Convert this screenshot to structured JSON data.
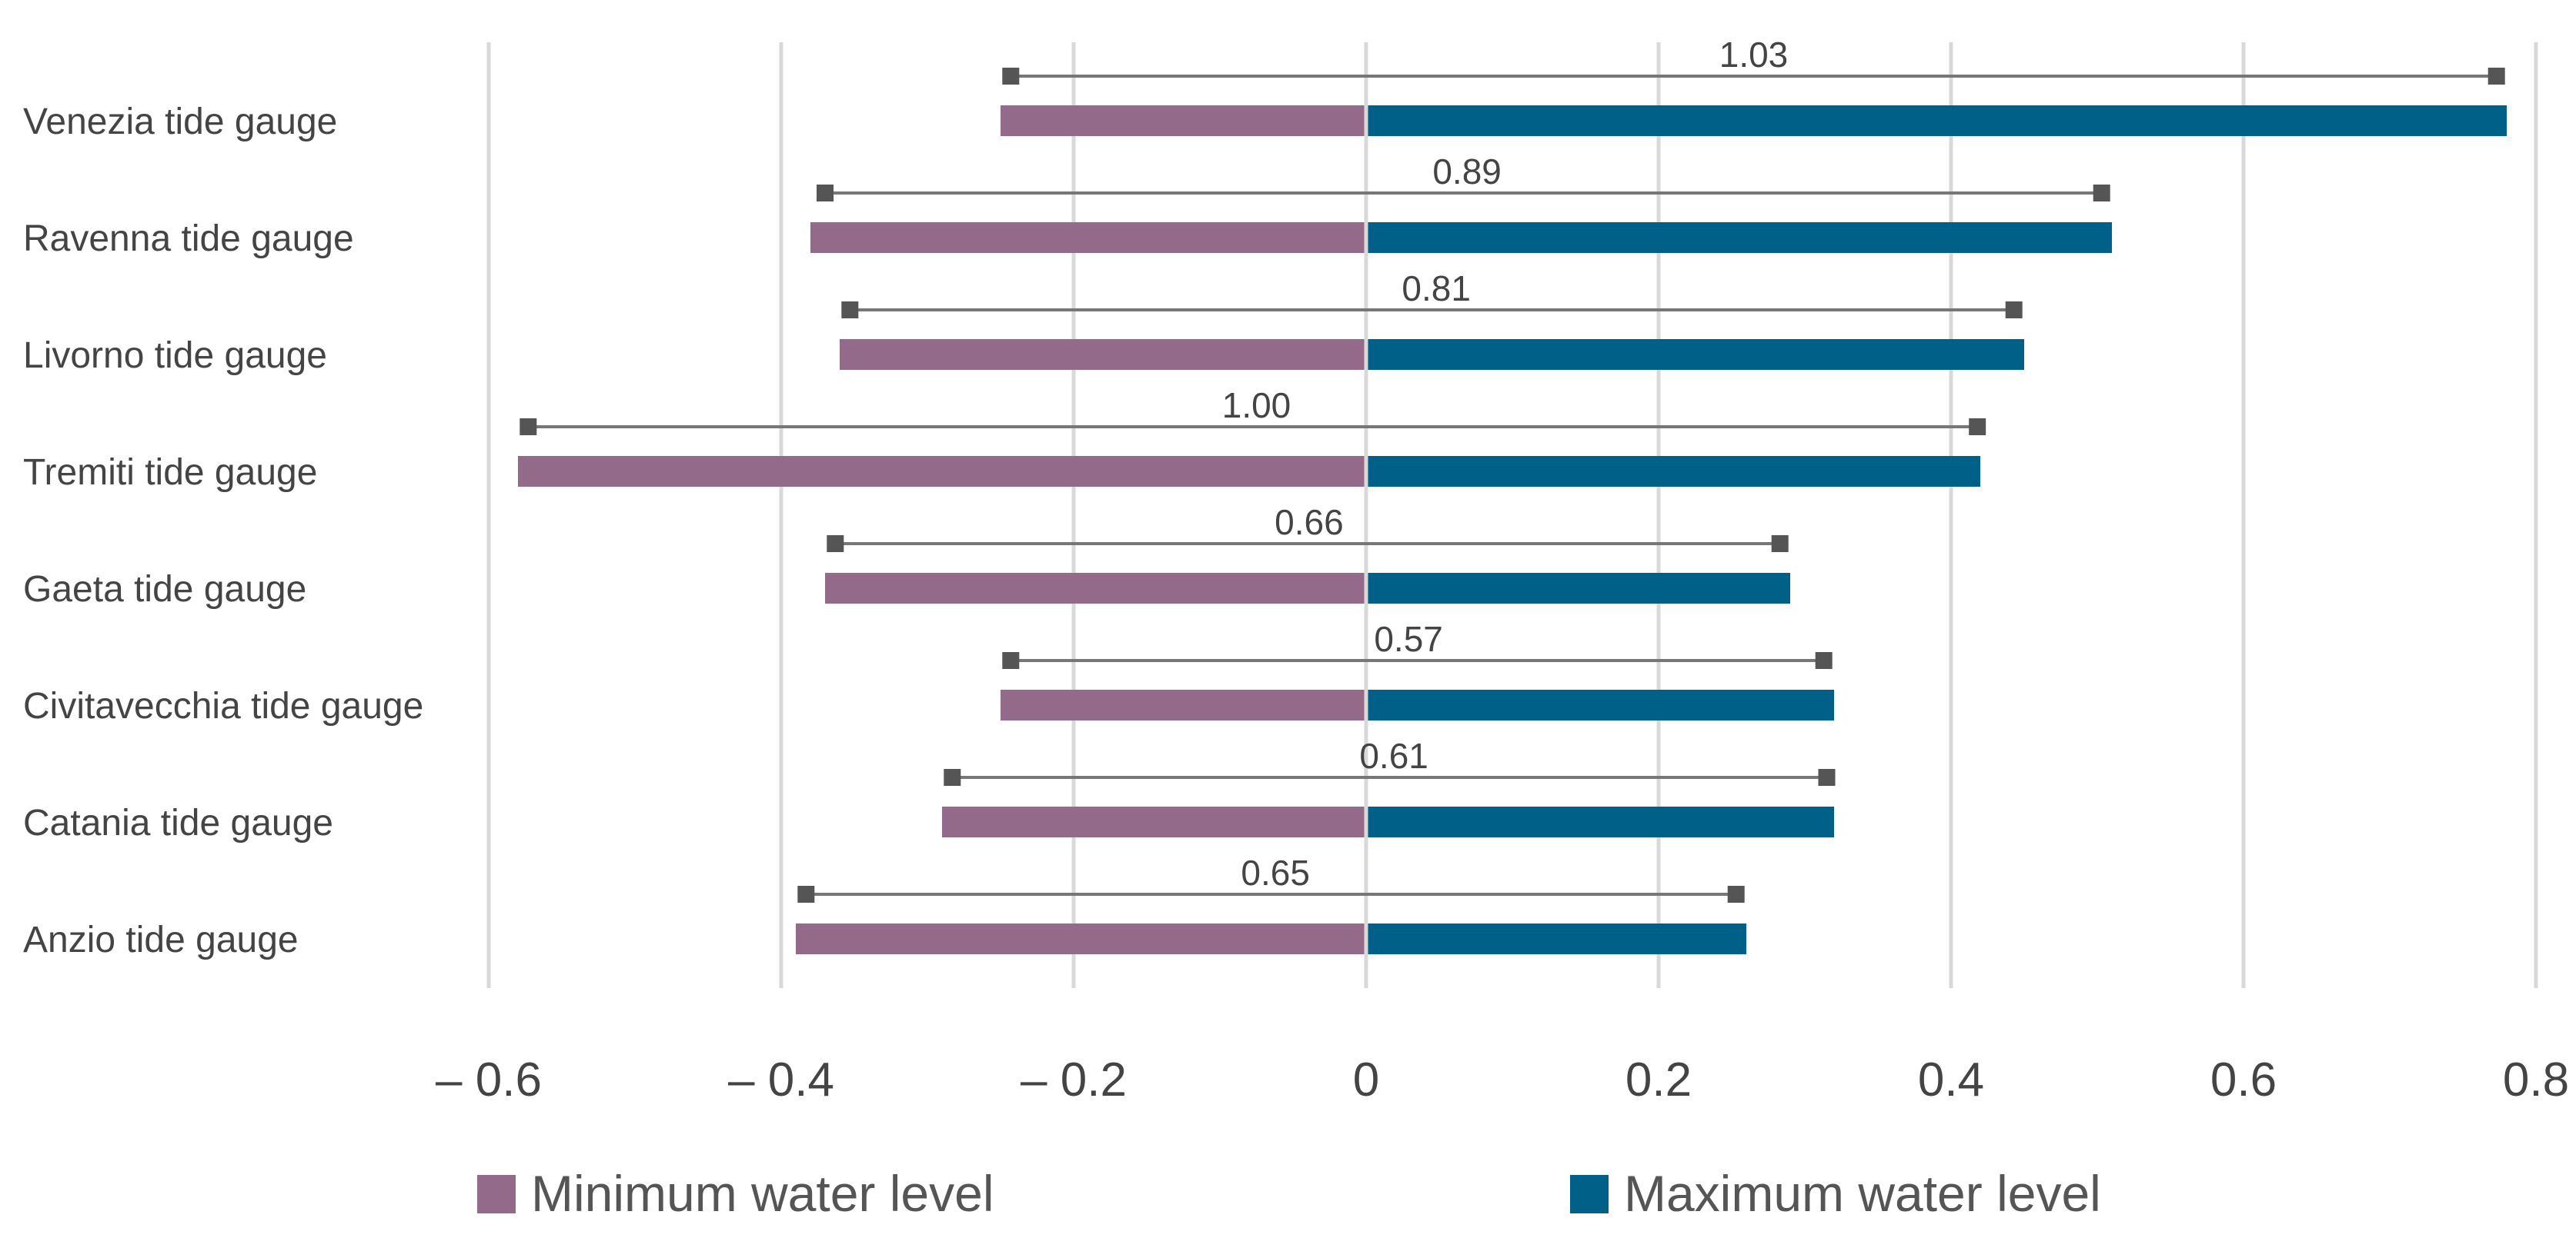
{
  "chart_data": {
    "type": "bar",
    "orientation": "horizontal-diverging",
    "title": "",
    "xlabel": "",
    "ylabel": "",
    "xlim": [
      -0.6,
      0.8
    ],
    "xticks": [
      -0.6,
      -0.4,
      -0.2,
      0,
      0.2,
      0.4,
      0.6,
      0.8
    ],
    "xtick_labels": [
      "– 0.6",
      "– 0.4",
      "– 0.2",
      "0",
      "0.2",
      "0.4",
      "0.6",
      "0.8"
    ],
    "grid": true,
    "legend_position": "bottom",
    "categories": [
      "Venezia tide gauge",
      "Ravenna tide gauge",
      "Livorno tide gauge",
      "Tremiti tide gauge",
      "Gaeta tide gauge",
      "Civitavecchia tide gauge",
      "Catania tide gauge",
      "Anzio tide gauge"
    ],
    "series": [
      {
        "name": "Minimum water level",
        "color": "#946a8a",
        "values": [
          -0.25,
          -0.38,
          -0.36,
          -0.58,
          -0.37,
          -0.25,
          -0.29,
          -0.39
        ]
      },
      {
        "name": "Maximum water level",
        "color": "#006088",
        "values": [
          0.78,
          0.51,
          0.45,
          0.42,
          0.29,
          0.32,
          0.32,
          0.26
        ]
      }
    ],
    "range_whiskers": {
      "color": "#777777",
      "marker_color": "#555555",
      "low": [
        -0.243,
        -0.37,
        -0.353,
        -0.573,
        -0.363,
        -0.243,
        -0.283,
        -0.383
      ],
      "high": [
        0.773,
        0.503,
        0.443,
        0.418,
        0.283,
        0.313,
        0.315,
        0.253
      ],
      "labels": [
        "1.03",
        "0.89",
        "0.81",
        "1.00",
        "0.66",
        "0.57",
        "0.61",
        "0.65"
      ],
      "label_x": [
        0.265,
        0.069,
        0.048,
        -0.075,
        -0.039,
        0.029,
        0.019,
        -0.062
      ]
    }
  }
}
